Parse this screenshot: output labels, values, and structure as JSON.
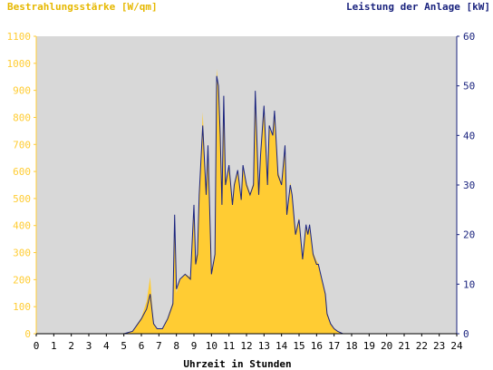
{
  "colors": {
    "irradiance": "#FFCC33",
    "power": "#1A237E",
    "plot_background": "#D8D8D8",
    "axis_x": "#000000"
  },
  "chart_data": {
    "type": "area",
    "title_left": "Bestrahlungsstärke [W/qm]",
    "title_right": "Leistung der Anlage [kW]",
    "xlabel": "Uhrzeit in Stunden",
    "x_ticks": [
      "0",
      "1",
      "2",
      "3",
      "4",
      "5",
      "6",
      "7",
      "8",
      "9",
      "10",
      "11",
      "12",
      "13",
      "14",
      "15",
      "16",
      "17",
      "18",
      "19",
      "20",
      "21",
      "22",
      "23",
      "24"
    ],
    "xlim": [
      0,
      24
    ],
    "y_left_ticks": [
      "0",
      "100",
      "200",
      "300",
      "400",
      "500",
      "600",
      "700",
      "800",
      "900",
      "1000",
      "1100"
    ],
    "y_left_lim": [
      0,
      1100
    ],
    "y_right_ticks": [
      "0",
      "10",
      "20",
      "30",
      "40",
      "50",
      "60"
    ],
    "y_right_lim": [
      0,
      60
    ],
    "series": [
      {
        "name": "Bestrahlungsstärke [W/qm]",
        "axis": "left",
        "style": "filled-area",
        "x": [
          0,
          5,
          5.5,
          6,
          6.3,
          6.5,
          6.6,
          6.7,
          6.9,
          7.2,
          7.5,
          7.8,
          7.9,
          8,
          8.2,
          8.5,
          8.8,
          9,
          9.1,
          9.2,
          9.3,
          9.5,
          9.7,
          9.8,
          10,
          10.2,
          10.3,
          10.4,
          10.5,
          10.6,
          10.7,
          10.8,
          11,
          11.2,
          11.3,
          11.5,
          11.7,
          11.8,
          12,
          12.2,
          12.4,
          12.5,
          12.7,
          12.8,
          13,
          13.2,
          13.3,
          13.5,
          13.6,
          13.8,
          14,
          14.1,
          14.2,
          14.3,
          14.5,
          14.6,
          14.8,
          15,
          15.2,
          15.4,
          15.5,
          15.6,
          15.8,
          16,
          16.1,
          16.3,
          16.5,
          16.6,
          16.8,
          17,
          17.2,
          17.5,
          17.8,
          18,
          18.5,
          19,
          19.5,
          19.8,
          20,
          24
        ],
        "y": [
          0,
          0,
          10,
          60,
          120,
          210,
          120,
          40,
          20,
          20,
          60,
          120,
          420,
          150,
          200,
          220,
          210,
          480,
          280,
          300,
          500,
          820,
          510,
          700,
          230,
          300,
          980,
          900,
          740,
          520,
          880,
          560,
          620,
          480,
          560,
          600,
          500,
          620,
          560,
          520,
          560,
          860,
          520,
          660,
          840,
          560,
          760,
          730,
          820,
          600,
          560,
          620,
          700,
          450,
          560,
          520,
          380,
          430,
          280,
          400,
          370,
          400,
          300,
          270,
          260,
          200,
          150,
          80,
          40,
          20,
          10,
          0,
          0,
          0,
          0,
          0,
          0,
          0,
          0,
          0
        ]
      },
      {
        "name": "Leistung der Anlage [kW]",
        "axis": "right",
        "style": "line",
        "x": [
          0,
          5,
          5.5,
          6,
          6.3,
          6.5,
          6.6,
          6.7,
          6.9,
          7.2,
          7.5,
          7.8,
          7.9,
          8,
          8.2,
          8.5,
          8.8,
          9,
          9.1,
          9.2,
          9.3,
          9.5,
          9.7,
          9.8,
          10,
          10.2,
          10.3,
          10.4,
          10.5,
          10.6,
          10.7,
          10.8,
          11,
          11.2,
          11.3,
          11.5,
          11.7,
          11.8,
          12,
          12.2,
          12.4,
          12.5,
          12.7,
          12.8,
          13,
          13.2,
          13.3,
          13.5,
          13.6,
          13.8,
          14,
          14.1,
          14.2,
          14.3,
          14.5,
          14.6,
          14.8,
          15,
          15.2,
          15.4,
          15.5,
          15.6,
          15.8,
          16,
          16.1,
          16.3,
          16.5,
          16.6,
          16.8,
          17,
          17.2,
          17.5,
          17.8,
          18,
          18.5,
          19,
          19.5,
          19.8,
          20,
          24
        ],
        "y": [
          0,
          0,
          0.5,
          3,
          5,
          8,
          5,
          2,
          1,
          1,
          3,
          6,
          24,
          9,
          11,
          12,
          11,
          26,
          14,
          16,
          28,
          42,
          28,
          38,
          12,
          16,
          52,
          50,
          40,
          26,
          48,
          30,
          34,
          26,
          30,
          33,
          27,
          34,
          30,
          28,
          30,
          49,
          28,
          36,
          46,
          30,
          42,
          40,
          45,
          32,
          30,
          34,
          38,
          24,
          30,
          28,
          20,
          23,
          15,
          22,
          20,
          22,
          16,
          14,
          14,
          11,
          8,
          4,
          2,
          1,
          0.5,
          0,
          0,
          0,
          0,
          0,
          0,
          0,
          0,
          0
        ]
      }
    ]
  }
}
